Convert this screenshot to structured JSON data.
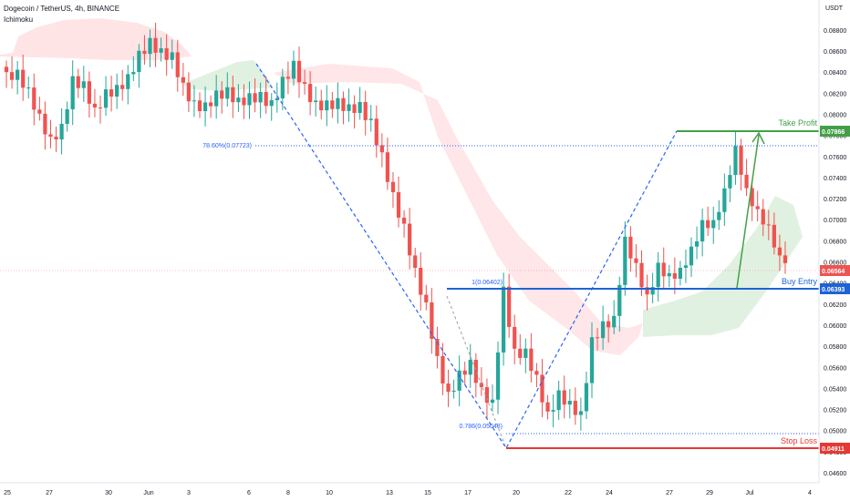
{
  "header": {
    "symbol_line": "Dogecoin / TetherUS, 4h, BINANCE",
    "indicator": "Ichimoku"
  },
  "colors": {
    "bull": "#26a69a",
    "bear": "#ef5350",
    "take_profit": "#43a047",
    "stop_loss": "#e53935",
    "entry": "#1e63d6",
    "fib": "#2962ff",
    "cloud_bull": "#c8e6c9",
    "cloud_bear": "#ffcdd2",
    "price_tag": "#ef5350"
  },
  "chart_data": {
    "type": "candlestick",
    "title": "Dogecoin / TetherUS, 4h, BINANCE",
    "indicator": "Ichimoku",
    "currency": "USDT",
    "ylim": [
      0.0454,
      0.0898
    ],
    "y_ticks": [
      "0.08800",
      "0.08600",
      "0.08400",
      "0.08200",
      "0.08000",
      "0.07800",
      "0.07600",
      "0.07400",
      "0.07200",
      "0.07000",
      "0.06800",
      "0.06600",
      "0.06400",
      "0.06200",
      "0.06000",
      "0.05800",
      "0.05600",
      "0.05400",
      "0.05200",
      "0.05000",
      "0.04800",
      "0.04600"
    ],
    "x_ticks": [
      "25",
      "27",
      "30",
      "Jun",
      "3",
      "6",
      "8",
      "10",
      "13",
      "15",
      "17",
      "20",
      "22",
      "24",
      "27",
      "29",
      "Jul",
      "4"
    ],
    "price_levels": {
      "take_profit": {
        "label": "Take Profit",
        "value": "0.07866"
      },
      "buy_entry": {
        "label": "Buy Entry",
        "value": "0.06393"
      },
      "stop_loss": {
        "label": "Stop Loss",
        "value": "0.04911"
      },
      "current": {
        "value": "0.06564"
      }
    },
    "fib_labels": [
      {
        "text": "78.60%(0.07723)",
        "value": 0.07723
      },
      {
        "text": "1(0.06402)",
        "value": 0.06402
      },
      {
        "text": "0.786(0.05048)",
        "value": 0.05048
      }
    ],
    "candles_anchor_closes": [
      0.084,
      0.0842,
      0.0825,
      0.08,
      0.0778,
      0.079,
      0.0835,
      0.083,
      0.0805,
      0.0822,
      0.0826,
      0.0836,
      0.0858,
      0.087,
      0.086,
      0.0856,
      0.0827,
      0.081,
      0.0808,
      0.0819,
      0.0822,
      0.0812,
      0.0816,
      0.0817,
      0.0809,
      0.0831,
      0.0846,
      0.0824,
      0.0808,
      0.0808,
      0.081,
      0.0804,
      0.0806,
      0.079,
      0.0758,
      0.072,
      0.069,
      0.0648,
      0.0615,
      0.0564,
      0.053,
      0.055,
      0.056,
      0.0534,
      0.0522,
      0.0629,
      0.057,
      0.057,
      0.0545,
      0.051,
      0.053,
      0.052,
      0.051,
      0.058,
      0.0595,
      0.06,
      0.0675,
      0.065,
      0.062,
      0.065,
      0.064,
      0.0645,
      0.0665,
      0.069,
      0.069,
      0.072,
      0.076,
      0.072,
      0.07,
      0.0685,
      0.0656,
      0.0655
    ]
  }
}
